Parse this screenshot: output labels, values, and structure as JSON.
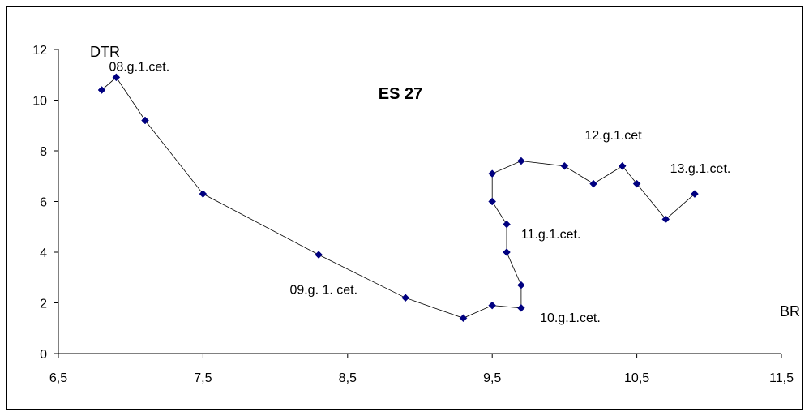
{
  "chart_data": {
    "type": "scatter",
    "title": "ES 27",
    "xlabel": "BR",
    "ylabel": "DTR",
    "xlim": [
      6.5,
      11.5
    ],
    "ylim": [
      0,
      12
    ],
    "xticks": [
      "6,5",
      "7,5",
      "8,5",
      "9,5",
      "10,5",
      "11,5"
    ],
    "yticks": [
      "0",
      "2",
      "4",
      "6",
      "8",
      "10",
      "12"
    ],
    "grid": false,
    "series": [
      {
        "color": "#000080",
        "line_color": "#000000",
        "points": [
          {
            "x": 6.8,
            "y": 10.4
          },
          {
            "x": 6.9,
            "y": 10.9
          },
          {
            "x": 7.1,
            "y": 9.2
          },
          {
            "x": 7.5,
            "y": 6.3
          },
          {
            "x": 8.3,
            "y": 3.9
          },
          {
            "x": 8.9,
            "y": 2.2
          },
          {
            "x": 9.3,
            "y": 1.4
          },
          {
            "x": 9.5,
            "y": 1.9
          },
          {
            "x": 9.7,
            "y": 1.8
          },
          {
            "x": 9.7,
            "y": 2.7
          },
          {
            "x": 9.6,
            "y": 4.0
          },
          {
            "x": 9.6,
            "y": 5.1
          },
          {
            "x": 9.5,
            "y": 6.0
          },
          {
            "x": 9.5,
            "y": 7.1
          },
          {
            "x": 9.7,
            "y": 7.6
          },
          {
            "x": 10.0,
            "y": 7.4
          },
          {
            "x": 10.2,
            "y": 6.7
          },
          {
            "x": 10.4,
            "y": 7.4
          },
          {
            "x": 10.5,
            "y": 6.7
          },
          {
            "x": 10.7,
            "y": 5.3
          },
          {
            "x": 10.9,
            "y": 6.3
          }
        ]
      }
    ],
    "annotations": [
      {
        "text": "08.g.1.cet.",
        "x": 6.85,
        "y": 11.15
      },
      {
        "text": "09.g. 1. cet.",
        "x": 8.1,
        "y": 2.35
      },
      {
        "text": "10.g.1.cet.",
        "x": 9.83,
        "y": 1.25
      },
      {
        "text": "11.g.1.cet.",
        "x": 9.7,
        "y": 4.55
      },
      {
        "text": "12.g.1.cet",
        "x": 10.14,
        "y": 8.45
      },
      {
        "text": "13.g.1.cet.",
        "x": 10.73,
        "y": 7.13
      }
    ]
  }
}
